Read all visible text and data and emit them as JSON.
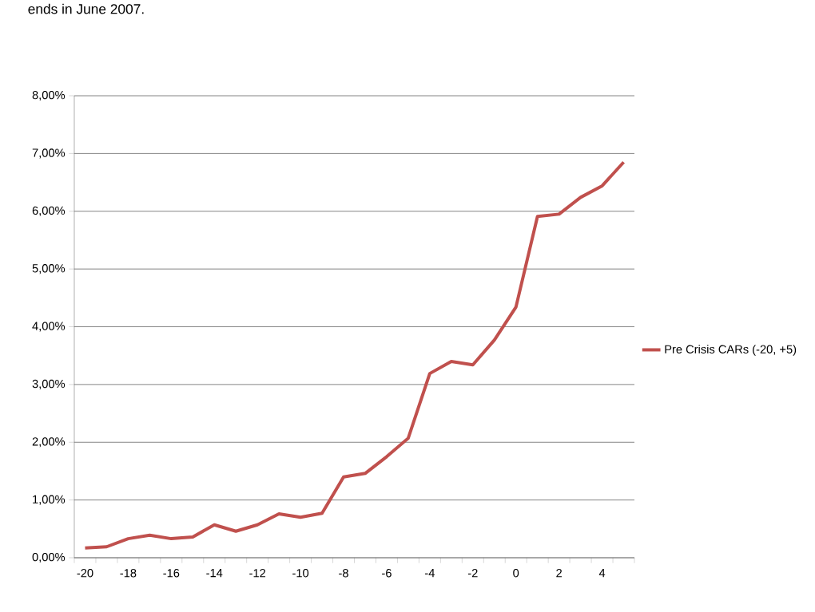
{
  "chart_data": {
    "type": "line",
    "annotations": [
      "ends in June 2007."
    ],
    "categories": [
      "-20",
      null,
      "-18",
      null,
      "-16",
      null,
      "-14",
      null,
      "-12",
      null,
      "-10",
      null,
      "-8",
      null,
      "-6",
      null,
      "-4",
      null,
      "-2",
      null,
      "0",
      null,
      "2",
      null,
      "4",
      null
    ],
    "series": [
      {
        "name": "Pre Crisis CARs (-20, +5)",
        "color": "#c0504d",
        "values": [
          0.17,
          0.19,
          0.33,
          0.39,
          0.33,
          0.36,
          0.57,
          0.46,
          0.57,
          0.76,
          0.7,
          0.77,
          1.4,
          1.46,
          1.75,
          2.07,
          3.19,
          3.4,
          3.34,
          3.77,
          4.34,
          5.91,
          5.95,
          6.24,
          6.44,
          6.85
        ]
      }
    ],
    "ylim": [
      0,
      8
    ],
    "yticks": [
      {
        "value": 0,
        "label": "0,00%"
      },
      {
        "value": 1,
        "label": "1,00%"
      },
      {
        "value": 2,
        "label": "2,00%"
      },
      {
        "value": 3,
        "label": "3,00%"
      },
      {
        "value": 4,
        "label": "4,00%"
      },
      {
        "value": 5,
        "label": "5,00%"
      },
      {
        "value": 6,
        "label": "6,00%"
      },
      {
        "value": 7,
        "label": "7,00%"
      },
      {
        "value": 8,
        "label": "8,00%"
      }
    ],
    "grid": "y",
    "legend": "right"
  }
}
